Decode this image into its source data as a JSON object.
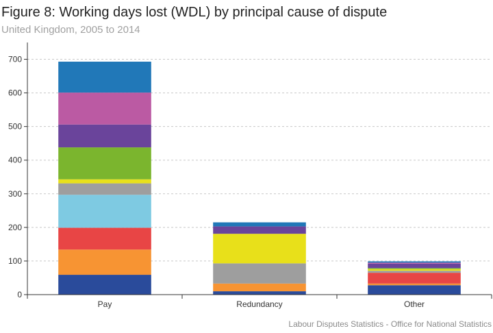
{
  "title": "Figure 8: Working days lost (WDL) by principal cause of dispute",
  "subtitle": "United Kingdom, 2005 to 2014",
  "source": "Labour Disputes Statistics - Office for National Statistics",
  "chart_data": {
    "type": "bar",
    "stacked": true,
    "categories": [
      "Pay",
      "Redundancy",
      "Other"
    ],
    "ylim": [
      0,
      750
    ],
    "yticks": [
      0,
      100,
      200,
      300,
      400,
      500,
      600,
      700
    ],
    "grid": true,
    "legend": "none",
    "series": [
      {
        "color": "#2a4b9b",
        "values": [
          59,
          10,
          28
        ]
      },
      {
        "color": "#f79433",
        "values": [
          75,
          23,
          5
        ]
      },
      {
        "color": "#e84545",
        "values": [
          65,
          0,
          32
        ]
      },
      {
        "color": "#7ecae2",
        "values": [
          98,
          0,
          0
        ]
      },
      {
        "color": "#9e9e9e",
        "values": [
          34,
          60,
          6
        ]
      },
      {
        "color": "#e8e01a",
        "values": [
          12,
          88,
          5
        ]
      },
      {
        "color": "#7bb52e",
        "values": [
          95,
          0,
          3
        ]
      },
      {
        "color": "#6a449b",
        "values": [
          68,
          22,
          13
        ]
      },
      {
        "color": "#bb5aa3",
        "values": [
          95,
          0,
          3
        ]
      },
      {
        "color": "#2178b8",
        "values": [
          92,
          12,
          4
        ]
      }
    ]
  }
}
